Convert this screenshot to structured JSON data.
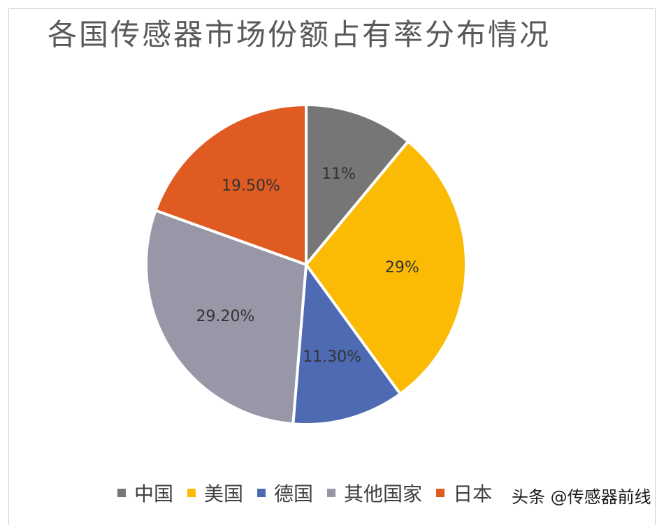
{
  "chart_data": {
    "type": "pie",
    "title": "各国传感器市场份额占有率分布情况",
    "slices": [
      {
        "name": "中国",
        "value": 11,
        "label": "11%",
        "color": "#767676"
      },
      {
        "name": "美国",
        "value": 29,
        "label": "29%",
        "color": "#fbbb05"
      },
      {
        "name": "德国",
        "value": 11.3,
        "label": "11.30%",
        "color": "#4d6ab3"
      },
      {
        "name": "其他国家",
        "value": 29.2,
        "label": "29.20%",
        "color": "#9797a7"
      },
      {
        "name": "日本",
        "value": 19.5,
        "label": "19.50%",
        "color": "#e05b22"
      }
    ],
    "legend_position": "bottom",
    "start_angle": "12 o'clock, clockwise"
  },
  "watermark": "头条 @传感器前线"
}
